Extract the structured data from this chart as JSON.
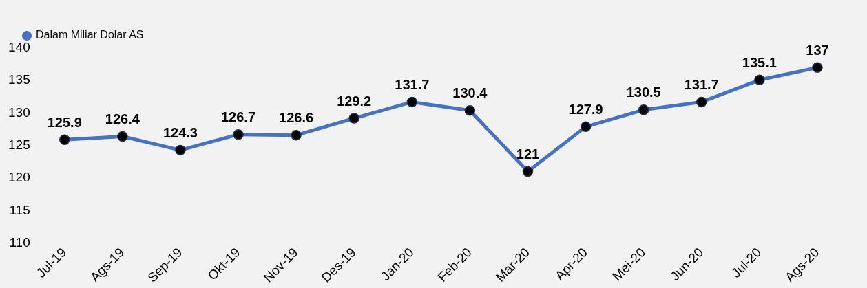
{
  "chart_data": {
    "type": "line",
    "categories": [
      "Jul-19",
      "Ags-19",
      "Sep-19",
      "Okt-19",
      "Nov-19",
      "Des-19",
      "Jan-20",
      "Feb-20",
      "Mar-20",
      "Apr-20",
      "Mei-20",
      "Jun-20",
      "Jul-20",
      "Ags-20"
    ],
    "series": [
      {
        "name": "Dalam Miliar Dolar AS",
        "color": "#4472c4",
        "values": [
          125.9,
          126.4,
          124.3,
          126.7,
          126.6,
          129.2,
          131.7,
          130.4,
          121,
          127.9,
          130.5,
          131.7,
          135.1,
          137
        ]
      }
    ],
    "ylim": [
      110,
      140
    ],
    "yticks": [
      110,
      115,
      120,
      125,
      130,
      135,
      140
    ],
    "grid": false,
    "legend": "top left",
    "marker": "circle",
    "line_style": "solid",
    "data_labels": true
  }
}
